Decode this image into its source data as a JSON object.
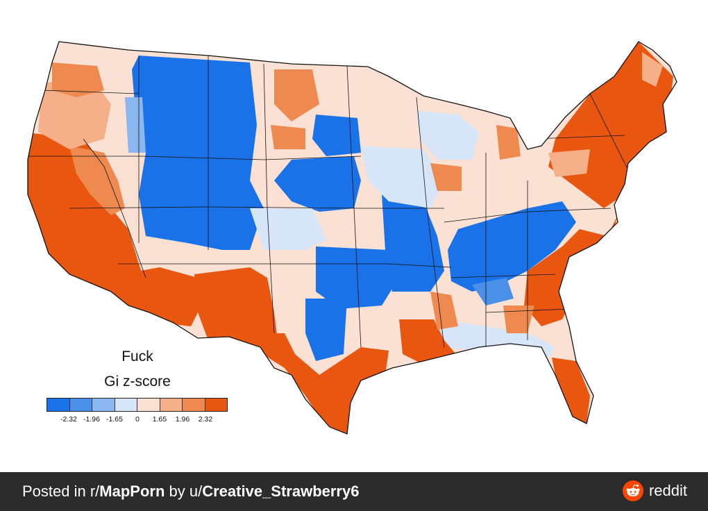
{
  "map": {
    "title": "Fuck",
    "subtitle": "Gi z-score",
    "legend": {
      "colors": [
        "#1a72e8",
        "#4a8fe8",
        "#8ab7ef",
        "#d6e6f8",
        "#fbe1d3",
        "#f5b08a",
        "#ee8a4f",
        "#e9560f"
      ],
      "ticks": [
        "-2.32",
        "-1.96",
        "-1.65",
        "0",
        "1.65",
        "1.96",
        "2.32"
      ]
    },
    "palette": {
      "strong_blue": "#1a72e8",
      "light_blue": "#d6e6f8",
      "strong_orange": "#e9560f",
      "light_orange": "#fbe1d3"
    }
  },
  "footer": {
    "prefix": "Posted in r/",
    "subreddit": "MapPorn",
    "by": " by u/",
    "user": "Creative_Strawberry6",
    "brand": "reddit",
    "brand_color": "#ff4500",
    "background": "#2b2b2b"
  }
}
